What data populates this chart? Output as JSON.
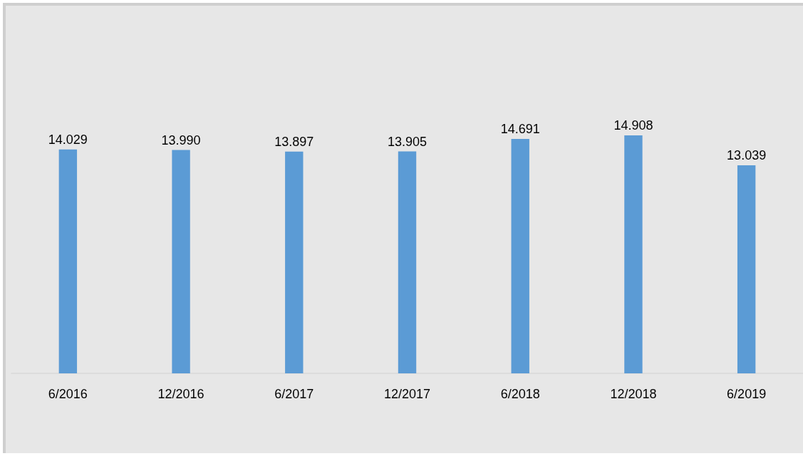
{
  "chart_data": {
    "type": "bar",
    "categories": [
      "6/2016",
      "12/2016",
      "6/2017",
      "12/2017",
      "6/2018",
      "12/2018",
      "6/2019"
    ],
    "values": [
      14.029,
      13.99,
      13.897,
      13.905,
      14.691,
      14.908,
      13.039
    ],
    "value_labels": [
      "14.029",
      "13.990",
      "13.897",
      "13.905",
      "14.691",
      "14.908",
      "13.039"
    ],
    "color": "#5b9bd5",
    "tick_labels": "x"
  }
}
